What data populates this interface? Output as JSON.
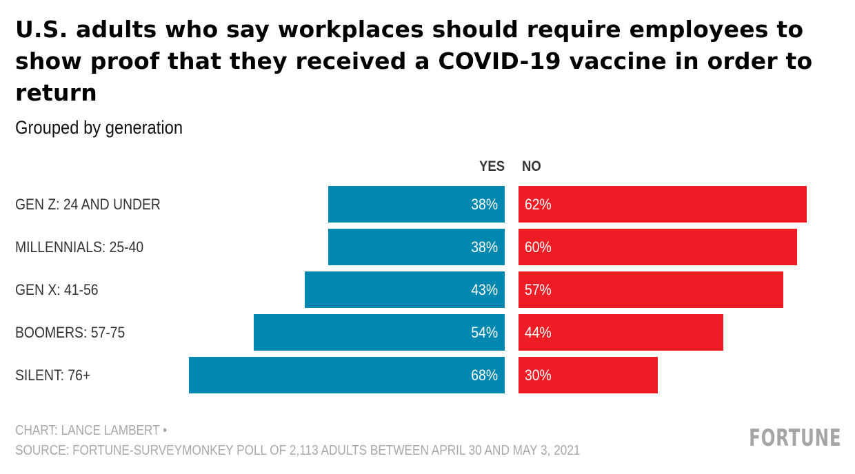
{
  "chart_data": {
    "type": "bar",
    "orientation": "horizontal-diverging",
    "title": "U.S. adults who say workplaces should require employees to show proof that they received a COVID-19 vaccine in order to return",
    "subtitle": "Grouped by generation",
    "categories": [
      "GEN Z: 24 AND UNDER",
      "MILLENNIALS: 25-40",
      "GEN X: 41-56",
      "BOOMERS: 57-75",
      "SILENT: 76+"
    ],
    "series": [
      {
        "name": "YES",
        "values": [
          38,
          38,
          43,
          54,
          68
        ],
        "labels": [
          "38%",
          "38%",
          "43%",
          "54%",
          "68%"
        ],
        "color": "#0088b0"
      },
      {
        "name": "NO",
        "values": [
          62,
          60,
          57,
          44,
          30
        ],
        "labels": [
          "62%",
          "60%",
          "57%",
          "44%",
          "30%"
        ],
        "color": "#ee1c25"
      }
    ],
    "unit": "%",
    "xlim": [
      0,
      100
    ],
    "grid": false
  },
  "footer": {
    "credit": "CHART: LANCE LAMBERT •",
    "source": "SOURCE: FORTUNE-SURVEYMONKEY POLL OF 2,113 ADULTS BETWEEN APRIL 30 AND MAY 3, 2021",
    "logo": "FORTUNE"
  }
}
